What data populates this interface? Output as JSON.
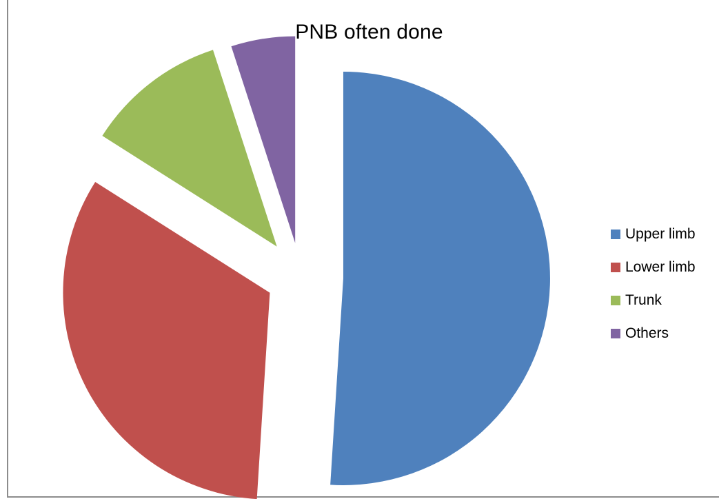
{
  "chart_data": {
    "type": "pie",
    "title": "PNB often done",
    "categories": [
      "Upper limb",
      "Lower limb",
      "Trunk",
      "Others"
    ],
    "values": [
      51,
      33,
      11,
      5
    ],
    "colors": [
      "#4F81BD",
      "#C0504D",
      "#9BBB59",
      "#8064A2"
    ],
    "exploded": true,
    "legend_position": "right"
  }
}
